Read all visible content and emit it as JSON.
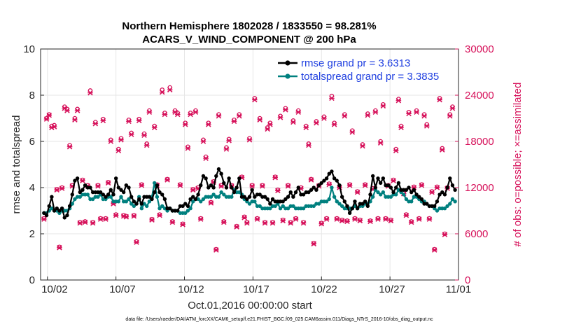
{
  "chart_data": {
    "type": "line",
    "title_line1": "Northern Hemisphere 1802028 / 1833550 = 98.281%",
    "title_line2": "ACARS_V_WIND_COMPONENT @ 200 hPa",
    "xlabel": "Oct.01,2016 00:00:00 start",
    "ylabel": "rmse and totalspread",
    "y2label": "# of obs: o=possible; ×=assimilated",
    "footnote": "data file: /Users/raeder/DAI/ATM_forcXX/CAM6_setup/f.e21.FHIST_BGC.f09_025.CAM6assim.011/Diags_NTrS_2016-10/obs_diag_output.nc",
    "xlim": [
      1.5,
      32.0
    ],
    "ylim": [
      0,
      10
    ],
    "y2lim": [
      0,
      30000
    ],
    "xticks": [
      2,
      7,
      12,
      17,
      22,
      27,
      32
    ],
    "xtick_labels": [
      "10/02",
      "10/07",
      "10/12",
      "10/17",
      "10/22",
      "10/27",
      "11/01"
    ],
    "yticks": [
      0,
      2,
      4,
      6,
      8,
      10
    ],
    "ytick_labels": [
      "0",
      "2",
      "4",
      "6",
      "8",
      "10"
    ],
    "y2ticks": [
      0,
      6000,
      12000,
      18000,
      24000,
      30000
    ],
    "y2tick_labels": [
      "0",
      "6000",
      "12000",
      "18000",
      "24000",
      "30000"
    ],
    "colors": {
      "rmse": "#000000",
      "spread": "#00807f",
      "obs": "#d6115a",
      "legend_text": "#1f3fe0",
      "grid": "#e6e6e6"
    },
    "legend_position": "top-right",
    "series": [
      {
        "name": "rmse grand pr = 3.6313",
        "key": "rmse",
        "values": [
          2.9,
          2.8,
          3.2,
          3.6,
          3.0,
          3.1,
          3.0,
          3.1,
          2.7,
          2.8,
          3.2,
          3.7,
          4.3,
          4.4,
          3.8,
          3.9,
          4.1,
          4.0,
          4.0,
          3.8,
          3.8,
          3.8,
          3.8,
          3.7,
          3.6,
          3.7,
          3.9,
          3.7,
          4.4,
          4.0,
          3.9,
          3.8,
          4.1,
          4.0,
          3.6,
          3.4,
          3.3,
          3.5,
          3.3,
          3.6,
          3.6,
          3.6,
          3.5,
          3.8,
          4.1,
          3.8,
          3.7,
          3.5,
          3.1,
          3.1,
          3.0,
          3.0,
          3.0,
          3.2,
          3.2,
          3.3,
          3.2,
          3.5,
          3.6,
          3.5,
          3.7,
          4.1,
          4.5,
          4.4,
          4.0,
          4.1,
          4.0,
          4.5,
          4.8,
          4.6,
          4.2,
          4.0,
          4.4,
          4.0,
          3.8,
          4.0,
          4.4,
          3.6,
          3.6,
          3.5,
          3.6,
          3.9,
          3.6,
          3.7,
          3.7,
          3.6,
          3.6,
          3.5,
          3.3,
          3.5,
          3.4,
          3.4,
          3.4,
          3.4,
          3.5,
          3.6,
          3.8,
          3.6,
          3.8,
          4.0,
          3.7,
          3.7,
          3.8,
          3.8,
          3.9,
          4.0,
          3.9,
          4.1,
          4.2,
          4.3,
          4.4,
          4.6,
          4.7,
          4.4,
          4.3,
          4.1,
          3.6,
          3.4,
          3.2,
          2.9,
          3.1,
          3.4,
          3.1,
          3.3,
          3.3,
          3.4,
          3.2,
          3.7,
          4.5,
          4.0,
          4.4,
          4.2,
          4.4,
          4.1,
          4.1,
          4.0,
          3.8,
          4.0,
          4.2,
          3.9,
          3.9,
          3.9,
          4.0,
          3.8,
          3.9,
          3.7,
          3.6,
          3.5,
          3.3,
          3.3,
          3.2,
          3.2,
          3.2,
          3.4,
          3.7,
          3.8,
          3.7,
          4.0,
          4.4,
          4.1,
          3.9
        ]
      },
      {
        "name": "totalspread grand pr = 3.3835",
        "key": "spread",
        "values": [
          2.9,
          2.9,
          3.0,
          3.1,
          3.0,
          3.0,
          2.9,
          3.0,
          3.0,
          3.0,
          3.1,
          3.3,
          3.5,
          3.6,
          3.6,
          3.7,
          3.7,
          3.7,
          3.5,
          3.5,
          3.6,
          3.6,
          3.7,
          3.5,
          3.5,
          3.6,
          3.6,
          3.4,
          3.4,
          3.4,
          3.6,
          3.4,
          3.4,
          3.5,
          3.3,
          3.2,
          3.3,
          3.6,
          3.1,
          3.3,
          3.2,
          3.4,
          3.6,
          4.2,
          3.6,
          3.1,
          3.2,
          3.1,
          3.0,
          3.1,
          3.0,
          3.0,
          3.0,
          2.9,
          2.9,
          2.9,
          3.0,
          3.1,
          3.4,
          3.5,
          3.5,
          3.4,
          3.5,
          3.6,
          3.6,
          3.6,
          3.7,
          3.6,
          3.6,
          3.8,
          3.7,
          3.6,
          3.6,
          3.6,
          3.9,
          3.8,
          3.8,
          3.7,
          3.5,
          3.4,
          3.3,
          3.4,
          3.4,
          3.2,
          3.2,
          3.1,
          3.1,
          3.1,
          3.1,
          3.2,
          3.2,
          3.3,
          3.1,
          3.2,
          3.1,
          3.1,
          3.2,
          3.2,
          3.1,
          3.1,
          3.1,
          3.1,
          3.2,
          3.2,
          3.2,
          3.2,
          3.3,
          3.3,
          3.4,
          3.4,
          3.4,
          3.5,
          4.0,
          3.6,
          3.4,
          3.3,
          3.2,
          3.1,
          3.1,
          3.1,
          3.1,
          3.2,
          3.1,
          3.2,
          3.2,
          3.3,
          3.3,
          3.4,
          3.6,
          3.9,
          3.8,
          3.7,
          3.8,
          3.6,
          3.6,
          3.6,
          3.7,
          3.7,
          3.9,
          3.8,
          3.7,
          3.5,
          3.4,
          3.4,
          3.6,
          3.6,
          3.5,
          3.4,
          3.4,
          3.3,
          3.2,
          3.2,
          3.1,
          3.0,
          3.1,
          3.1,
          3.1,
          3.2,
          3.3,
          3.5,
          3.4
        ]
      },
      {
        "name": "# of obs possible",
        "key": "obs_possible",
        "values": [
          8000,
          21000,
          21500,
          20000,
          20100,
          11800,
          4300,
          12000,
          22500,
          22200,
          17500,
          12300,
          21000,
          22200,
          7500,
          13000,
          7600,
          12300,
          24600,
          7500,
          20500,
          12300,
          8000,
          20900,
          8000,
          12700,
          18200,
          10000,
          8500,
          17000,
          18400,
          8400,
          8300,
          20800,
          19100,
          8400,
          5000,
          20900,
          12400,
          19000,
          17700,
          22000,
          7900,
          20000,
          12400,
          8500,
          24700,
          21700,
          13100,
          25000,
          7600,
          22000,
          21700,
          12400,
          7300,
          20400,
          17300,
          21700,
          11800,
          22000,
          12000,
          8000,
          18200,
          16000,
          20400,
          10100,
          12800,
          4000,
          21500,
          12300,
          7600,
          17200,
          18300,
          12300,
          20800,
          7000,
          21500,
          13400,
          8200,
          7500,
          18400,
          12300,
          23600,
          8000,
          21000,
          12300,
          7500,
          19800,
          20400,
          7500,
          13400,
          11700,
          21300,
          7800,
          22300,
          12300,
          7500,
          20700,
          8000,
          22000,
          12000,
          7500,
          20000,
          17700,
          13100,
          4800,
          20600,
          12300,
          7400,
          21200,
          8000,
          12500,
          23900,
          20400,
          8000,
          12100,
          7800,
          21500,
          7700,
          12400,
          19400,
          8000,
          11500,
          7800,
          17600,
          12400,
          21600,
          7700,
          11900,
          22000,
          8000,
          18000,
          22800,
          8000,
          12300,
          7800,
          13000,
          17000,
          23500,
          20000,
          11300,
          8500,
          21800,
          7600,
          12100,
          22000,
          8000,
          12400,
          21500,
          20200,
          8000,
          11500,
          4000,
          12100,
          23600,
          17100,
          6000,
          12000,
          21500,
          22500
        ]
      },
      {
        "name": "# of obs assimilated",
        "key": "obs_assimilated",
        "values": [
          7900,
          20900,
          21400,
          19800,
          19900,
          11700,
          4200,
          11900,
          22300,
          22000,
          17300,
          12200,
          20800,
          22000,
          7400,
          12900,
          7500,
          12200,
          24300,
          7400,
          20300,
          12200,
          7900,
          20700,
          7900,
          12600,
          18000,
          9900,
          8400,
          16800,
          18200,
          8300,
          8200,
          20600,
          18900,
          8300,
          4900,
          20700,
          12300,
          18800,
          17500,
          21800,
          7800,
          19800,
          12300,
          8400,
          24400,
          21500,
          13000,
          24700,
          7500,
          21800,
          21500,
          12300,
          7200,
          20200,
          17100,
          21500,
          11700,
          21800,
          11900,
          7900,
          18000,
          15800,
          20200,
          10000,
          12700,
          3900,
          21300,
          12200,
          7500,
          17000,
          18100,
          12200,
          20600,
          6900,
          21300,
          13300,
          8100,
          7400,
          18200,
          12200,
          23400,
          7900,
          20800,
          12200,
          7400,
          19600,
          20200,
          7400,
          13300,
          11600,
          21100,
          7700,
          22100,
          12200,
          7400,
          20500,
          7900,
          21800,
          11900,
          7400,
          19800,
          17500,
          13000,
          4700,
          20400,
          12200,
          7300,
          21000,
          7900,
          12400,
          23600,
          20200,
          7900,
          12000,
          7700,
          21300,
          7600,
          12300,
          19200,
          7900,
          11400,
          7700,
          17400,
          12300,
          21400,
          7600,
          11800,
          21800,
          7900,
          17800,
          22600,
          7900,
          12200,
          7700,
          12900,
          16800,
          23300,
          19800,
          11200,
          8400,
          21600,
          7500,
          12000,
          21800,
          7900,
          12300,
          21300,
          20000,
          7900,
          11400,
          3900,
          12000,
          23400,
          16900,
          5900,
          11900,
          21300,
          22300
        ]
      }
    ]
  }
}
